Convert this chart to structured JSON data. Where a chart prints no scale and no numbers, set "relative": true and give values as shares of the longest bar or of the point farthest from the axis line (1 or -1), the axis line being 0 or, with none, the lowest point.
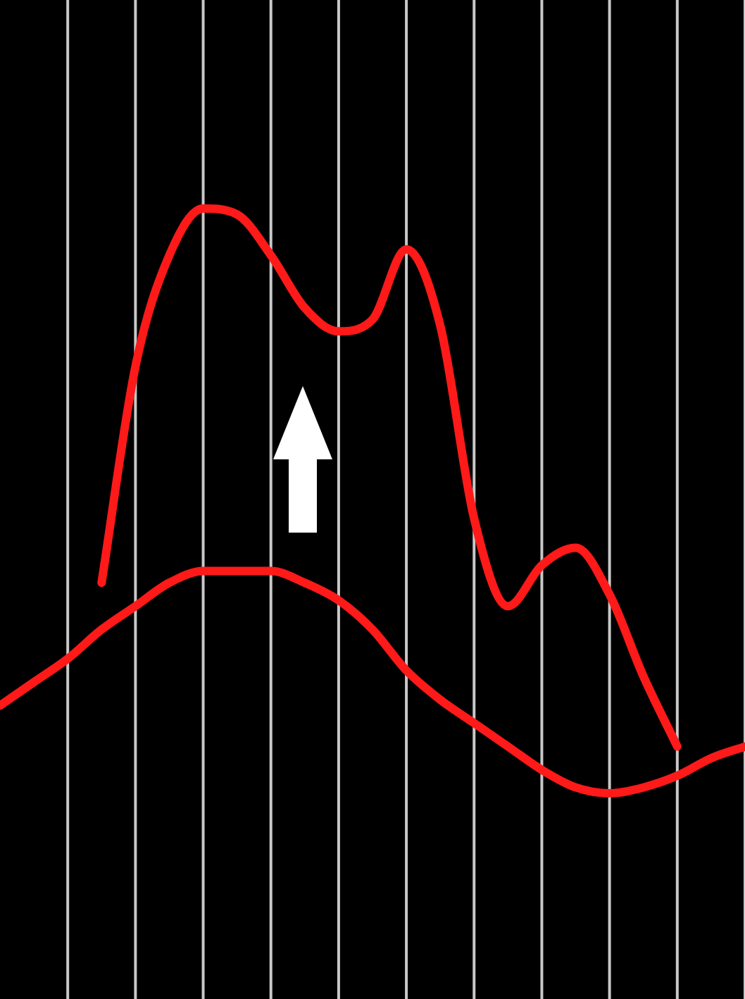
{
  "chart_data": {
    "type": "line",
    "relative": true,
    "grid": "x",
    "marker": "none",
    "line_style": "solid",
    "categories": [
      null,
      null,
      null,
      null,
      null,
      null,
      null,
      null,
      null,
      null,
      null,
      null,
      null,
      null,
      null,
      null,
      null,
      null,
      null,
      null,
      null,
      null,
      null
    ],
    "series": [
      {
        "color": "#ff1a1a",
        "values": [
          null,
          null,
          null,
          0.36,
          0.73,
          0.92,
          1,
          0.99,
          0.92,
          0.83,
          0.79,
          0.81,
          0.93,
          0.8,
          0.47,
          0.32,
          0.39,
          0.42,
          0.34,
          0.2,
          0.08,
          null,
          null
        ]
      },
      {
        "color": "#ff1a1a",
        "values": [
          0.15,
          0.19,
          0.23,
          0.28,
          0.32,
          0.36,
          0.38,
          0.38,
          0.38,
          0.36,
          0.33,
          0.28,
          0.21,
          0.16,
          0.12,
          0.08,
          0.04,
          0.01,
          0,
          0.01,
          0.03,
          0.06,
          0.08
        ]
      }
    ]
  }
}
